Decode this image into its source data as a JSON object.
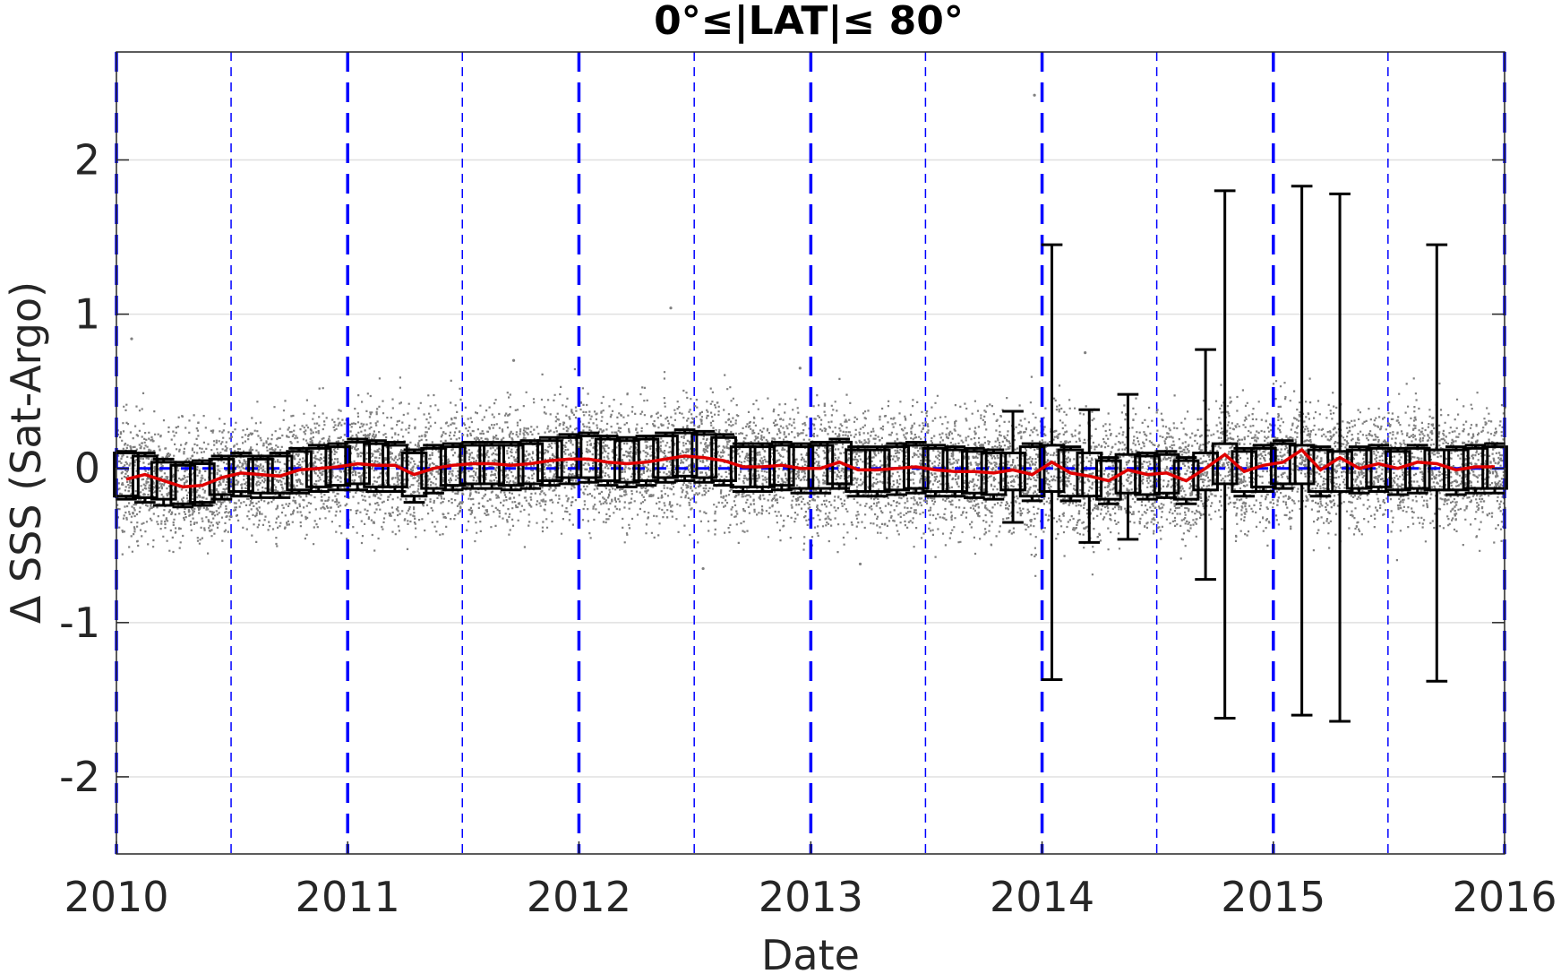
{
  "chart_data": {
    "type": "scatter",
    "title": "0°≤|LAT|≤ 80°",
    "xlabel": "Date",
    "ylabel": "Δ SSS (Sat-Argo)",
    "xlim": [
      "2010-01-01",
      "2016-01-01"
    ],
    "ylim": [
      -2.5,
      2.7
    ],
    "xticks": [
      "2010",
      "2011",
      "2012",
      "2013",
      "2014",
      "2015",
      "2016"
    ],
    "yticks": [
      "-2",
      "-1",
      "0",
      "1",
      "2"
    ],
    "ytick_values": [
      -2,
      -1,
      0,
      1,
      2
    ],
    "grid": "horizontal",
    "colors": {
      "scatter": "#808080",
      "median": "#e00000",
      "boxes": "#000000",
      "year_lines": "#0000ff",
      "grid": "#e0e0e0"
    },
    "vertical_lines": {
      "major": [
        "2010-01-01",
        "2011-01-01",
        "2012-01-01",
        "2013-01-01",
        "2014-01-01",
        "2015-01-01",
        "2016-01-01"
      ],
      "minor": [
        "2010-07-01",
        "2011-07-01",
        "2012-07-01",
        "2013-07-01",
        "2014-07-01",
        "2015-07-01"
      ]
    },
    "reference_line_y": 0,
    "monthly_box_stats": [
      {
        "date": "2010-01",
        "median": -0.07,
        "q1": -0.18,
        "q3": 0.1,
        "whisker_low": -0.2,
        "whisker_high": 0.11
      },
      {
        "date": "2010-02",
        "median": -0.04,
        "q1": -0.19,
        "q3": 0.08,
        "whisker_low": -0.22,
        "whisker_high": 0.1
      },
      {
        "date": "2010-03",
        "median": -0.08,
        "q1": -0.2,
        "q3": 0.04,
        "whisker_low": -0.24,
        "whisker_high": 0.06
      },
      {
        "date": "2010-04",
        "median": -0.12,
        "q1": -0.23,
        "q3": 0.02,
        "whisker_low": -0.25,
        "whisker_high": 0.04
      },
      {
        "date": "2010-05",
        "median": -0.11,
        "q1": -0.22,
        "q3": 0.03,
        "whisker_low": -0.24,
        "whisker_high": 0.05
      },
      {
        "date": "2010-06",
        "median": -0.06,
        "q1": -0.17,
        "q3": 0.06,
        "whisker_low": -0.2,
        "whisker_high": 0.08
      },
      {
        "date": "2010-07",
        "median": -0.03,
        "q1": -0.15,
        "q3": 0.08,
        "whisker_low": -0.18,
        "whisker_high": 0.1
      },
      {
        "date": "2010-08",
        "median": -0.04,
        "q1": -0.16,
        "q3": 0.06,
        "whisker_low": -0.19,
        "whisker_high": 0.08
      },
      {
        "date": "2010-09",
        "median": -0.05,
        "q1": -0.16,
        "q3": 0.08,
        "whisker_low": -0.19,
        "whisker_high": 0.1
      },
      {
        "date": "2010-10",
        "median": -0.01,
        "q1": -0.14,
        "q3": 0.11,
        "whisker_low": -0.16,
        "whisker_high": 0.13
      },
      {
        "date": "2010-11",
        "median": 0.0,
        "q1": -0.12,
        "q3": 0.13,
        "whisker_low": -0.15,
        "whisker_high": 0.15
      },
      {
        "date": "2010-12",
        "median": 0.01,
        "q1": -0.11,
        "q3": 0.14,
        "whisker_low": -0.14,
        "whisker_high": 0.16
      },
      {
        "date": "2011-01",
        "median": 0.03,
        "q1": -0.1,
        "q3": 0.17,
        "whisker_low": -0.14,
        "whisker_high": 0.19
      },
      {
        "date": "2011-02",
        "median": 0.02,
        "q1": -0.12,
        "q3": 0.16,
        "whisker_low": -0.15,
        "whisker_high": 0.18
      },
      {
        "date": "2011-03",
        "median": 0.02,
        "q1": -0.12,
        "q3": 0.15,
        "whisker_low": -0.15,
        "whisker_high": 0.17
      },
      {
        "date": "2011-04",
        "median": -0.04,
        "q1": -0.18,
        "q3": 0.1,
        "whisker_low": -0.22,
        "whisker_high": 0.12
      },
      {
        "date": "2011-05",
        "median": 0.0,
        "q1": -0.13,
        "q3": 0.13,
        "whisker_low": -0.16,
        "whisker_high": 0.15
      },
      {
        "date": "2011-06",
        "median": 0.02,
        "q1": -0.11,
        "q3": 0.14,
        "whisker_low": -0.14,
        "whisker_high": 0.16
      },
      {
        "date": "2011-07",
        "median": 0.03,
        "q1": -0.1,
        "q3": 0.15,
        "whisker_low": -0.13,
        "whisker_high": 0.17
      },
      {
        "date": "2011-08",
        "median": 0.03,
        "q1": -0.1,
        "q3": 0.15,
        "whisker_low": -0.13,
        "whisker_high": 0.17
      },
      {
        "date": "2011-09",
        "median": 0.02,
        "q1": -0.11,
        "q3": 0.15,
        "whisker_low": -0.14,
        "whisker_high": 0.17
      },
      {
        "date": "2011-10",
        "median": 0.03,
        "q1": -0.1,
        "q3": 0.16,
        "whisker_low": -0.13,
        "whisker_high": 0.18
      },
      {
        "date": "2011-11",
        "median": 0.05,
        "q1": -0.08,
        "q3": 0.18,
        "whisker_low": -0.11,
        "whisker_high": 0.2
      },
      {
        "date": "2011-12",
        "median": 0.06,
        "q1": -0.06,
        "q3": 0.2,
        "whisker_low": -0.1,
        "whisker_high": 0.22
      },
      {
        "date": "2012-01",
        "median": 0.06,
        "q1": -0.06,
        "q3": 0.21,
        "whisker_low": -0.09,
        "whisker_high": 0.23
      },
      {
        "date": "2012-02",
        "median": 0.04,
        "q1": -0.08,
        "q3": 0.19,
        "whisker_low": -0.11,
        "whisker_high": 0.21
      },
      {
        "date": "2012-03",
        "median": 0.03,
        "q1": -0.09,
        "q3": 0.18,
        "whisker_low": -0.12,
        "whisker_high": 0.2
      },
      {
        "date": "2012-04",
        "median": 0.04,
        "q1": -0.08,
        "q3": 0.19,
        "whisker_low": -0.11,
        "whisker_high": 0.21
      },
      {
        "date": "2012-05",
        "median": 0.06,
        "q1": -0.06,
        "q3": 0.21,
        "whisker_low": -0.09,
        "whisker_high": 0.23
      },
      {
        "date": "2012-06",
        "median": 0.08,
        "q1": -0.05,
        "q3": 0.23,
        "whisker_low": -0.08,
        "whisker_high": 0.25
      },
      {
        "date": "2012-07",
        "median": 0.07,
        "q1": -0.06,
        "q3": 0.22,
        "whisker_low": -0.09,
        "whisker_high": 0.24
      },
      {
        "date": "2012-08",
        "median": 0.05,
        "q1": -0.08,
        "q3": 0.2,
        "whisker_low": -0.11,
        "whisker_high": 0.22
      },
      {
        "date": "2012-09",
        "median": 0.01,
        "q1": -0.12,
        "q3": 0.14,
        "whisker_low": -0.15,
        "whisker_high": 0.16
      },
      {
        "date": "2012-10",
        "median": 0.01,
        "q1": -0.12,
        "q3": 0.14,
        "whisker_low": -0.15,
        "whisker_high": 0.16
      },
      {
        "date": "2012-11",
        "median": 0.02,
        "q1": -0.11,
        "q3": 0.15,
        "whisker_low": -0.14,
        "whisker_high": 0.17
      },
      {
        "date": "2012-12",
        "median": 0.0,
        "q1": -0.13,
        "q3": 0.14,
        "whisker_low": -0.16,
        "whisker_high": 0.16
      },
      {
        "date": "2013-01",
        "median": 0.0,
        "q1": -0.13,
        "q3": 0.15,
        "whisker_low": -0.16,
        "whisker_high": 0.17
      },
      {
        "date": "2013-02",
        "median": 0.04,
        "q1": -0.1,
        "q3": 0.17,
        "whisker_low": -0.13,
        "whisker_high": 0.19
      },
      {
        "date": "2013-03",
        "median": -0.01,
        "q1": -0.15,
        "q3": 0.12,
        "whisker_low": -0.18,
        "whisker_high": 0.14
      },
      {
        "date": "2013-04",
        "median": -0.01,
        "q1": -0.15,
        "q3": 0.12,
        "whisker_low": -0.18,
        "whisker_high": 0.14
      },
      {
        "date": "2013-05",
        "median": 0.0,
        "q1": -0.14,
        "q3": 0.14,
        "whisker_low": -0.17,
        "whisker_high": 0.16
      },
      {
        "date": "2013-06",
        "median": 0.01,
        "q1": -0.13,
        "q3": 0.15,
        "whisker_low": -0.16,
        "whisker_high": 0.17
      },
      {
        "date": "2013-07",
        "median": -0.01,
        "q1": -0.15,
        "q3": 0.13,
        "whisker_low": -0.18,
        "whisker_high": 0.15
      },
      {
        "date": "2013-08",
        "median": -0.02,
        "q1": -0.15,
        "q3": 0.12,
        "whisker_low": -0.18,
        "whisker_high": 0.14
      },
      {
        "date": "2013-09",
        "median": -0.02,
        "q1": -0.16,
        "q3": 0.11,
        "whisker_low": -0.19,
        "whisker_high": 0.13
      },
      {
        "date": "2013-10",
        "median": -0.03,
        "q1": -0.17,
        "q3": 0.1,
        "whisker_low": -0.2,
        "whisker_high": 0.12
      },
      {
        "date": "2013-11",
        "median": -0.01,
        "q1": -0.14,
        "q3": 0.1,
        "whisker_low": -0.35,
        "whisker_high": 0.37
      },
      {
        "date": "2013-12",
        "median": -0.04,
        "q1": -0.18,
        "q3": 0.14,
        "whisker_low": -0.21,
        "whisker_high": 0.16
      },
      {
        "date": "2014-01",
        "median": 0.04,
        "q1": -0.15,
        "q3": 0.15,
        "whisker_low": -1.37,
        "whisker_high": 1.45
      },
      {
        "date": "2014-02",
        "median": -0.03,
        "q1": -0.18,
        "q3": 0.12,
        "whisker_low": -0.21,
        "whisker_high": 0.14
      },
      {
        "date": "2014-03",
        "median": -0.05,
        "q1": -0.18,
        "q3": 0.1,
        "whisker_low": -0.48,
        "whisker_high": 0.38
      },
      {
        "date": "2014-04",
        "median": -0.08,
        "q1": -0.2,
        "q3": 0.05,
        "whisker_low": -0.23,
        "whisker_high": 0.07
      },
      {
        "date": "2014-05",
        "median": -0.01,
        "q1": -0.16,
        "q3": 0.09,
        "whisker_low": -0.46,
        "whisker_high": 0.48
      },
      {
        "date": "2014-06",
        "median": -0.04,
        "q1": -0.17,
        "q3": 0.08,
        "whisker_low": -0.2,
        "whisker_high": 0.1
      },
      {
        "date": "2014-07",
        "median": -0.03,
        "q1": -0.16,
        "q3": 0.09,
        "whisker_low": -0.19,
        "whisker_high": 0.11
      },
      {
        "date": "2014-08",
        "median": -0.08,
        "q1": -0.2,
        "q3": 0.05,
        "whisker_low": -0.23,
        "whisker_high": 0.07
      },
      {
        "date": "2014-09",
        "median": 0.0,
        "q1": -0.14,
        "q3": 0.1,
        "whisker_low": -0.72,
        "whisker_high": 0.77
      },
      {
        "date": "2014-10",
        "median": 0.09,
        "q1": -0.1,
        "q3": 0.16,
        "whisker_low": -1.62,
        "whisker_high": 1.8
      },
      {
        "date": "2014-11",
        "median": -0.02,
        "q1": -0.15,
        "q3": 0.11,
        "whisker_low": -0.18,
        "whisker_high": 0.13
      },
      {
        "date": "2014-12",
        "median": 0.02,
        "q1": -0.12,
        "q3": 0.13,
        "whisker_low": -0.15,
        "whisker_high": 0.15
      },
      {
        "date": "2015-01",
        "median": 0.04,
        "q1": -0.1,
        "q3": 0.16,
        "whisker_low": -0.13,
        "whisker_high": 0.18
      },
      {
        "date": "2015-02",
        "median": 0.12,
        "q1": -0.1,
        "q3": 0.15,
        "whisker_low": -1.6,
        "whisker_high": 1.83
      },
      {
        "date": "2015-03",
        "median": -0.01,
        "q1": -0.15,
        "q3": 0.12,
        "whisker_low": -0.18,
        "whisker_high": 0.14
      },
      {
        "date": "2015-04",
        "median": 0.07,
        "q1": -0.15,
        "q3": 0.11,
        "whisker_low": -1.64,
        "whisker_high": 1.78
      },
      {
        "date": "2015-05",
        "median": 0.0,
        "q1": -0.13,
        "q3": 0.12,
        "whisker_low": -0.16,
        "whisker_high": 0.14
      },
      {
        "date": "2015-06",
        "median": 0.03,
        "q1": -0.12,
        "q3": 0.13,
        "whisker_low": -0.15,
        "whisker_high": 0.15
      },
      {
        "date": "2015-07",
        "median": 0.0,
        "q1": -0.14,
        "q3": 0.11,
        "whisker_low": -0.17,
        "whisker_high": 0.13
      },
      {
        "date": "2015-08",
        "median": 0.04,
        "q1": -0.13,
        "q3": 0.13,
        "whisker_low": -0.16,
        "whisker_high": 0.15
      },
      {
        "date": "2015-09",
        "median": 0.03,
        "q1": -0.14,
        "q3": 0.12,
        "whisker_low": -1.38,
        "whisker_high": 1.45
      },
      {
        "date": "2015-10",
        "median": -0.01,
        "q1": -0.14,
        "q3": 0.12,
        "whisker_low": -0.17,
        "whisker_high": 0.14
      },
      {
        "date": "2015-11",
        "median": 0.01,
        "q1": -0.13,
        "q3": 0.13,
        "whisker_low": -0.16,
        "whisker_high": 0.15
      },
      {
        "date": "2015-12",
        "median": 0.01,
        "q1": -0.13,
        "q3": 0.14,
        "whisker_low": -0.16,
        "whisker_high": 0.16
      }
    ],
    "scatter_outliers": [
      {
        "date": "2013-12-20",
        "y": 2.42
      },
      {
        "date": "2012-05-25",
        "y": 1.04
      },
      {
        "date": "2010-01-25",
        "y": 0.84
      },
      {
        "date": "2011-09-20",
        "y": 0.7
      },
      {
        "date": "2014-03-10",
        "y": 0.75
      },
      {
        "date": "2012-12-15",
        "y": 0.65
      },
      {
        "date": "2012-07-15",
        "y": -0.65
      },
      {
        "date": "2013-03-20",
        "y": -0.62
      }
    ]
  }
}
